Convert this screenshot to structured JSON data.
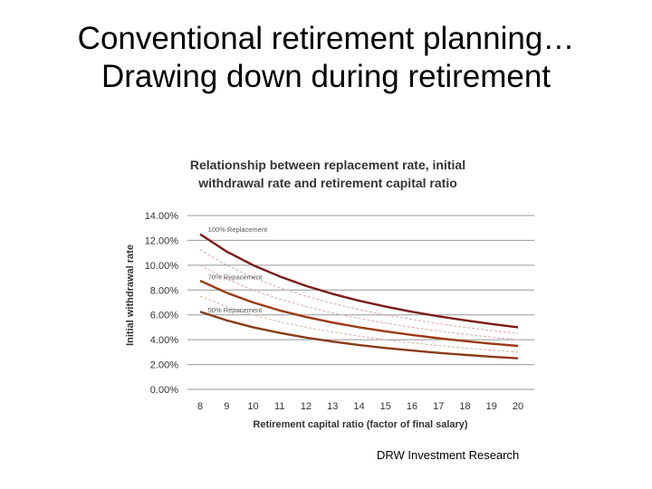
{
  "slide": {
    "title_line1": "Conventional retirement planning…",
    "title_line2": "Drawing down during retirement",
    "source": "DRW Investment Research"
  },
  "chart_data": {
    "type": "line",
    "title_lines": [
      "Relationship between replacement rate, initial",
      "withdrawal rate and retirement capital ratio"
    ],
    "xlabel": "Retirement capital ratio (factor of final salary)",
    "ylabel": "Initial withdrawal rate",
    "x": [
      8,
      9,
      10,
      11,
      12,
      13,
      14,
      15,
      16,
      17,
      18,
      19,
      20
    ],
    "yticks": [
      "0.00%",
      "2.00%",
      "4.00%",
      "6.00%",
      "8.00%",
      "10.00%",
      "12.00%",
      "14.00%"
    ],
    "ylim": [
      0,
      14
    ],
    "grid": true,
    "series": [
      {
        "name": "100% Replacement",
        "color": "#7b1a1a",
        "values": [
          12.5,
          11.1,
          10.0,
          9.1,
          8.33,
          7.69,
          7.14,
          6.67,
          6.25,
          5.88,
          5.56,
          5.26,
          5.0
        ]
      },
      {
        "name": "70% Repacement",
        "color": "#9c3a14",
        "values": [
          8.75,
          7.78,
          7.0,
          6.36,
          5.83,
          5.38,
          5.0,
          4.67,
          4.38,
          4.12,
          3.89,
          3.68,
          3.5
        ]
      },
      {
        "name": "50% Repacement",
        "color": "#8a3b17",
        "values": [
          6.25,
          5.56,
          5.0,
          4.55,
          4.17,
          3.85,
          3.57,
          3.33,
          3.13,
          2.94,
          2.78,
          2.63,
          2.5
        ]
      }
    ],
    "intermediate_series": [
      {
        "color": "#d9a9a9",
        "values": [
          11.25,
          10.0,
          9.0,
          8.18,
          7.5,
          6.92,
          6.43,
          6.0,
          5.63,
          5.29,
          5.0,
          4.74,
          4.5
        ]
      },
      {
        "color": "#d9a9a9",
        "values": [
          10.0,
          8.89,
          8.0,
          7.27,
          6.67,
          6.15,
          5.71,
          5.33,
          5.0,
          4.71,
          4.44,
          4.21,
          4.0
        ]
      },
      {
        "color": "#d9b0a0",
        "values": [
          7.5,
          6.67,
          6.0,
          5.45,
          5.0,
          4.62,
          4.29,
          4.0,
          3.75,
          3.53,
          3.33,
          3.16,
          3.0
        ]
      }
    ]
  }
}
